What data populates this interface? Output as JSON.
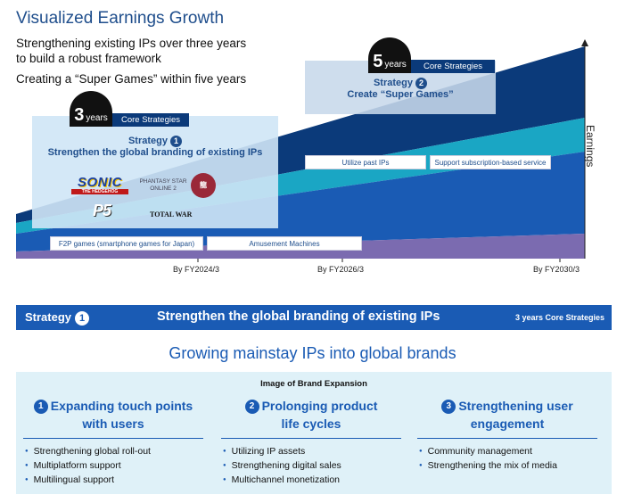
{
  "header": {
    "title": "Visualized Earnings Growth",
    "subtitle_line1": "Strengthening existing IPs over three years",
    "subtitle_line2": "to build a robust framework",
    "subtitle_line3": "Creating a “Super Games” within five years"
  },
  "diagram": {
    "badge3": {
      "num": "3",
      "unit": "years",
      "tag": "Core Strategies"
    },
    "badge5": {
      "num": "5",
      "unit": "years",
      "tag": "Core Strategies"
    },
    "strategy1": {
      "label": "Strategy",
      "num": "1",
      "text": "Strengthen the global branding of existing IPs"
    },
    "strategy2": {
      "label": "Strategy",
      "num": "2",
      "text": "Create “Super Games”"
    },
    "layers": {
      "f2p": "F2P games (smartphone games for Japan)",
      "amusement": "Amusement Machines",
      "past_ips": "Utilize past IPs",
      "subscription": "Support subscription-based service"
    },
    "x_ticks": [
      "By FY2024/3",
      "By FY2026/3",
      "By FY2030/3"
    ],
    "y_label": "Earnings",
    "logos": [
      "SONIC",
      "THE HEDGEHOG",
      "PHANTASY STAR ONLINE 2",
      "P5",
      "TOTAL WAR"
    ]
  },
  "colors": {
    "navy": "#0b3a7a",
    "blue": "#1a5bb4",
    "cyan": "#1aa6c4",
    "purple": "#7b6bb0",
    "light": "#dff1f8"
  },
  "band": {
    "strategy": "Strategy",
    "num": "1",
    "title": "Strengthen the global branding of existing IPs",
    "tag": "3 years Core Strategies"
  },
  "growing": "Growing mainstay IPs into global brands",
  "panel": {
    "title": "Image of Brand Expansion",
    "columns": [
      {
        "num": "1",
        "head1": "Expanding touch points",
        "head2": "with users",
        "items": [
          "Strengthening global roll-out",
          "Multiplatform support",
          "Multilingual support"
        ]
      },
      {
        "num": "2",
        "head1": "Prolonging product",
        "head2": "life cycles",
        "items": [
          "Utilizing IP assets",
          "Strengthening digital sales",
          "Multichannel monetization"
        ]
      },
      {
        "num": "3",
        "head1": "Strengthening user",
        "head2": "engagement",
        "items": [
          "Community management",
          "Strengthening the mix of media"
        ]
      }
    ]
  }
}
